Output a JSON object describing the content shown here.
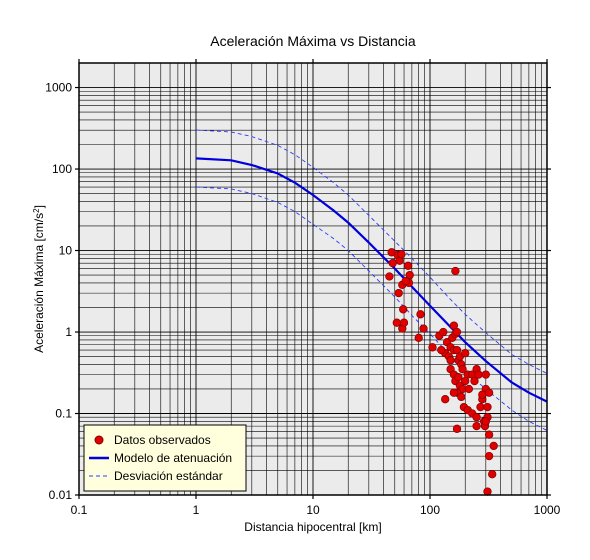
{
  "chart_data": {
    "type": "scatter",
    "title": "Aceleración Máxima vs Distancia",
    "xlabel": "Distancia hipocentral [km]",
    "ylabel_main": "Aceleración Máxima [cm/s",
    "ylabel_sup": "2",
    "ylabel_end": "]",
    "x_scale": "log",
    "y_scale": "log",
    "xlim": [
      0.1,
      1000
    ],
    "ylim": [
      0.01,
      2000
    ],
    "grid": true,
    "legend_position": "bottom-left",
    "x_tick_labels": [
      {
        "value": 0.1,
        "label": "0.1"
      },
      {
        "value": 1,
        "label": "1"
      },
      {
        "value": 10,
        "label": "10"
      },
      {
        "value": 100,
        "label": "100"
      },
      {
        "value": 1000,
        "label": "1000"
      }
    ],
    "y_tick_labels": [
      {
        "value": 0.01,
        "label": "0.01"
      },
      {
        "value": 0.1,
        "label": "0.1"
      },
      {
        "value": 1,
        "label": "1"
      },
      {
        "value": 10,
        "label": "10"
      },
      {
        "value": 100,
        "label": "100"
      },
      {
        "value": 1000,
        "label": "1000"
      }
    ],
    "legend": {
      "observed": "Datos observados",
      "model": "Modelo de atenuación",
      "stddev": "Desviación estándar"
    },
    "colors": {
      "observed_fill": "#e00000",
      "observed_edge": "#800000",
      "model": "#0000dd",
      "stddev": "#2a3cff",
      "plot_bg": "#ebebeb",
      "legend_bg": "#ffffdd"
    },
    "series": [
      {
        "name": "Modelo de atenuación",
        "style": "solid",
        "x": [
          1,
          2,
          3,
          5,
          7,
          10,
          15,
          20,
          30,
          50,
          70,
          100,
          150,
          200,
          300,
          500,
          700,
          1000
        ],
        "y": [
          135,
          128,
          112,
          88,
          68,
          48,
          31,
          22,
          12.5,
          6.0,
          3.6,
          2.1,
          1.15,
          0.75,
          0.44,
          0.24,
          0.18,
          0.14
        ]
      },
      {
        "name": "Desviación estándar",
        "style": "dashed",
        "x": [
          1,
          2,
          3,
          5,
          7,
          10,
          15,
          20,
          30,
          50,
          70,
          100,
          150,
          200,
          300,
          500,
          700,
          1000
        ],
        "y": [
          300,
          285,
          250,
          195,
          150,
          105,
          68,
          48,
          27,
          13,
          8,
          4.7,
          2.5,
          1.65,
          0.98,
          0.53,
          0.4,
          0.31
        ]
      },
      {
        "name": "Desviación estándar (inferior)",
        "style": "dashed",
        "x": [
          1,
          2,
          3,
          5,
          7,
          10,
          15,
          20,
          30,
          50,
          70,
          100,
          150,
          200,
          300,
          500,
          700,
          1000
        ],
        "y": [
          60,
          57,
          50,
          39,
          30,
          21,
          14,
          10,
          5.6,
          2.7,
          1.6,
          0.95,
          0.51,
          0.33,
          0.2,
          0.11,
          0.08,
          0.062
        ]
      },
      {
        "name": "Datos observados",
        "style": "points",
        "points": [
          [
            45,
            4.8
          ],
          [
            47,
            9.5
          ],
          [
            48,
            7.0
          ],
          [
            53,
            8.8
          ],
          [
            55,
            7.5
          ],
          [
            57,
            9.0
          ],
          [
            65,
            6.5
          ],
          [
            67,
            5.0
          ],
          [
            58,
            3.8
          ],
          [
            54,
            3.0
          ],
          [
            66,
            4.0
          ],
          [
            62,
            4.2
          ],
          [
            59,
            1.9
          ],
          [
            52,
            1.3
          ],
          [
            58,
            1.1
          ],
          [
            60,
            1.3
          ],
          [
            83,
            1.65
          ],
          [
            88,
            1.1
          ],
          [
            80,
            0.85
          ],
          [
            105,
            0.65
          ],
          [
            120,
            0.9
          ],
          [
            130,
            1.0
          ],
          [
            140,
            0.75
          ],
          [
            150,
            0.65
          ],
          [
            155,
            0.85
          ],
          [
            160,
            1.2
          ],
          [
            165,
            0.95
          ],
          [
            170,
            1.0
          ],
          [
            165,
            5.6
          ],
          [
            135,
            0.55
          ],
          [
            125,
            0.6
          ],
          [
            145,
            0.5
          ],
          [
            150,
            0.45
          ],
          [
            160,
            0.6
          ],
          [
            170,
            0.6
          ],
          [
            175,
            0.45
          ],
          [
            180,
            0.5
          ],
          [
            185,
            0.4
          ],
          [
            190,
            0.35
          ],
          [
            200,
            0.55
          ],
          [
            210,
            0.3
          ],
          [
            150,
            0.35
          ],
          [
            160,
            0.3
          ],
          [
            165,
            0.25
          ],
          [
            175,
            0.28
          ],
          [
            180,
            0.22
          ],
          [
            190,
            0.2
          ],
          [
            200,
            0.25
          ],
          [
            215,
            0.2
          ],
          [
            230,
            0.3
          ],
          [
            240,
            0.25
          ],
          [
            250,
            0.35
          ],
          [
            260,
            0.3
          ],
          [
            170,
            0.18
          ],
          [
            185,
            0.16
          ],
          [
            160,
            0.18
          ],
          [
            195,
            0.12
          ],
          [
            210,
            0.11
          ],
          [
            230,
            0.1
          ],
          [
            250,
            0.09
          ],
          [
            270,
            0.12
          ],
          [
            280,
            0.15
          ],
          [
            300,
            0.2
          ],
          [
            310,
            0.12
          ],
          [
            320,
            0.18
          ],
          [
            300,
            0.3
          ],
          [
            280,
            0.17
          ],
          [
            310,
            0.09
          ],
          [
            290,
            0.08
          ],
          [
            295,
            0.07
          ],
          [
            250,
            0.07
          ],
          [
            135,
            0.15
          ],
          [
            170,
            0.065
          ],
          [
            320,
            0.055
          ],
          [
            350,
            0.04
          ],
          [
            320,
            0.03
          ],
          [
            340,
            0.018
          ],
          [
            310,
            0.011
          ],
          [
            300,
            0.08
          ]
        ]
      }
    ]
  }
}
